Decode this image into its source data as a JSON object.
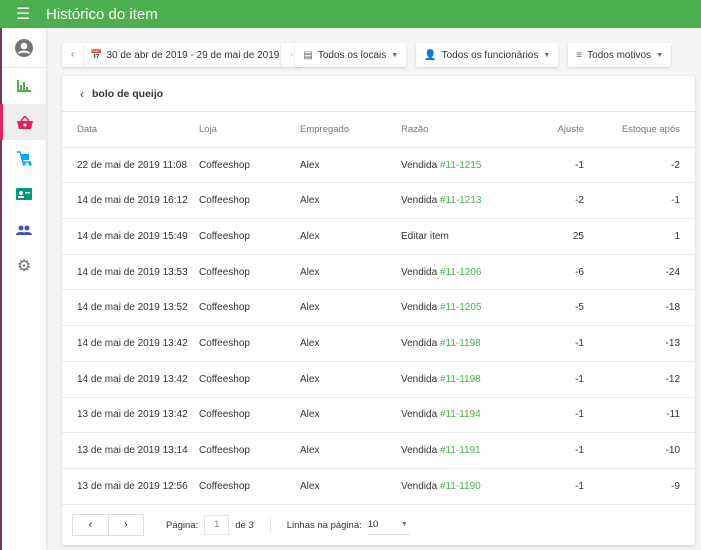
{
  "header": {
    "title": "Histórico do item",
    "menu_icon": "hamburger-icon"
  },
  "sidebar": {
    "items": [
      {
        "icon": "account-icon",
        "color": "#757575"
      },
      {
        "icon": "reports-icon",
        "color": "#4caf50"
      },
      {
        "icon": "items-basket-icon",
        "color": "#e91e63",
        "active": true
      },
      {
        "icon": "inventory-icon",
        "color": "#03a9f4"
      },
      {
        "icon": "employees-card-icon",
        "color": "#009688"
      },
      {
        "icon": "customers-icon",
        "color": "#3f51b5"
      },
      {
        "icon": "settings-icon",
        "color": "#757575"
      }
    ]
  },
  "filters": {
    "date_range": "30 de abr de 2019 - 29 de mai de 2019",
    "stores": "Todos os locais",
    "employees": "Todos os funcionários",
    "reasons": "Todos motivos"
  },
  "card": {
    "item_name": "bolo de queijo",
    "columns": [
      "Data",
      "Loja",
      "Empregado",
      "Razão",
      "Ajuste",
      "Estoque após"
    ],
    "rows": [
      {
        "date": "22 de mai de 2019 11:08",
        "store": "Coffeeshop",
        "employee": "Alex",
        "reason": "Vendida",
        "ref": "#11-1215",
        "adj": "-1",
        "stock": "-2"
      },
      {
        "date": "14 de mai de 2019 16:12",
        "store": "Coffeeshop",
        "employee": "Alex",
        "reason": "Vendida",
        "ref": "#11-1213",
        "adj": "-2",
        "stock": "-1"
      },
      {
        "date": "14 de mai de 2019 15:49",
        "store": "Coffeeshop",
        "employee": "Alex",
        "reason": "Editar item",
        "ref": "",
        "adj": "25",
        "stock": "1"
      },
      {
        "date": "14 de mai de 2019 13:53",
        "store": "Coffeeshop",
        "employee": "Alex",
        "reason": "Vendida",
        "ref": "#11-1206",
        "adj": "-6",
        "stock": "-24"
      },
      {
        "date": "14 de mai de 2019 13:52",
        "store": "Coffeeshop",
        "employee": "Alex",
        "reason": "Vendida",
        "ref": "#11-1205",
        "adj": "-5",
        "stock": "-18"
      },
      {
        "date": "14 de mai de 2019 13:42",
        "store": "Coffeeshop",
        "employee": "Alex",
        "reason": "Vendida",
        "ref": "#11-1198",
        "adj": "-1",
        "stock": "-13"
      },
      {
        "date": "14 de mai de 2019 13:42",
        "store": "Coffeeshop",
        "employee": "Alex",
        "reason": "Vendida",
        "ref": "#11-1198",
        "adj": "-1",
        "stock": "-12"
      },
      {
        "date": "13 de mai de 2019 13:42",
        "store": "Coffeeshop",
        "employee": "Alex",
        "reason": "Vendida",
        "ref": "#11-1194",
        "adj": "-1",
        "stock": "-11"
      },
      {
        "date": "13 de mai de 2019 13:14",
        "store": "Coffeeshop",
        "employee": "Alex",
        "reason": "Vendida",
        "ref": "#11-1191",
        "adj": "-1",
        "stock": "-10"
      },
      {
        "date": "13 de mai de 2019 12:56",
        "store": "Coffeeshop",
        "employee": "Alex",
        "reason": "Vendida",
        "ref": "#11-1190",
        "adj": "-1",
        "stock": "-9"
      }
    ]
  },
  "pagination": {
    "page_label": "Página:",
    "page": "1",
    "of": "de 3",
    "rows_label": "Linhas na página:",
    "rows_per_page": "10"
  }
}
